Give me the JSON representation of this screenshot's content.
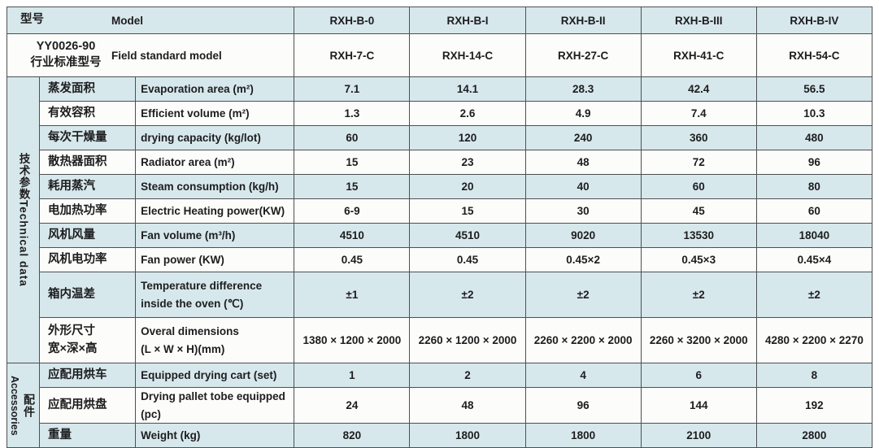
{
  "colors": {
    "band_blue": "#d7e8ec",
    "band_white": "#fcfcfa",
    "border": "#4d4f52",
    "text": "#1d1d1f"
  },
  "header": {
    "cn": "型号",
    "en": "Model",
    "models": [
      "RXH-B-0",
      "RXH-B-I",
      "RXH-B-II",
      "RXH-B-III",
      "RXH-B-IV"
    ]
  },
  "standard": {
    "cn": "YY0026-90\n行业标准型号",
    "en": "Field standard model",
    "values": [
      "RXH-7-C",
      "RXH-14-C",
      "RXH-27-C",
      "RXH-41-C",
      "RXH-54-C"
    ]
  },
  "groups": [
    {
      "label_cn": "技术参数",
      "label_en": "Technical data",
      "label_layout": "single-column",
      "rows": [
        {
          "cn": "蒸发面积",
          "en": "Evaporation area (m²)",
          "values": [
            "7.1",
            "14.1",
            "28.3",
            "42.4",
            "56.5"
          ]
        },
        {
          "cn": "有效容积",
          "en": "Efficient volume (m²)",
          "values": [
            "1.3",
            "2.6",
            "4.9",
            "7.4",
            "10.3"
          ]
        },
        {
          "cn": "每次干燥量",
          "en": "drying capacity (kg/lot)",
          "values": [
            "60",
            "120",
            "240",
            "360",
            "480"
          ]
        },
        {
          "cn": "散热器面积",
          "en": "Radiator area (m²)",
          "values": [
            "15",
            "23",
            "48",
            "72",
            "96"
          ]
        },
        {
          "cn": "耗用蒸汽",
          "en": "Steam consumption (kg/h)",
          "values": [
            "15",
            "20",
            "40",
            "60",
            "80"
          ]
        },
        {
          "cn": "电加热功率",
          "en": "Electric Heating power(KW)",
          "values": [
            "6-9",
            "15",
            "30",
            "45",
            "60"
          ]
        },
        {
          "cn": "风机风量",
          "en": "Fan volume (m³/h)",
          "values": [
            "4510",
            "4510",
            "9020",
            "13530",
            "18040"
          ]
        },
        {
          "cn": "风机电功率",
          "en": "Fan power (KW)",
          "values": [
            "0.45",
            "0.45",
            "0.45×2",
            "0.45×3",
            "0.45×4"
          ]
        },
        {
          "cn": "箱内温差",
          "en": "Temperature difference\ninside the oven (℃)",
          "values": [
            "±1",
            "±2",
            "±2",
            "±2",
            "±2"
          ]
        },
        {
          "cn": "外形尺寸\n宽×深×高",
          "en": "Overal dimensions\n(L × W × H)(mm)",
          "values": [
            "1380 × 1200 × 2000",
            "2260 × 1200 × 2000",
            "2260 × 2200 × 2000",
            "2260 × 3200 × 2000",
            "4280 × 2200 × 2270"
          ]
        }
      ]
    },
    {
      "label_cn": "配件",
      "label_en": "Accessories",
      "label_layout": "two-column",
      "rows": [
        {
          "cn": "应配用烘车",
          "en": "Equipped drying cart (set)",
          "values": [
            "1",
            "2",
            "4",
            "6",
            "8"
          ]
        },
        {
          "cn": "应配用烘盘",
          "en": "Drying pallet tobe equipped (pc)",
          "values": [
            "24",
            "48",
            "96",
            "144",
            "192"
          ]
        },
        {
          "cn": "重量",
          "en": "Weight (kg)",
          "values": [
            "820",
            "1800",
            "1800",
            "2100",
            "2800"
          ]
        }
      ]
    }
  ]
}
